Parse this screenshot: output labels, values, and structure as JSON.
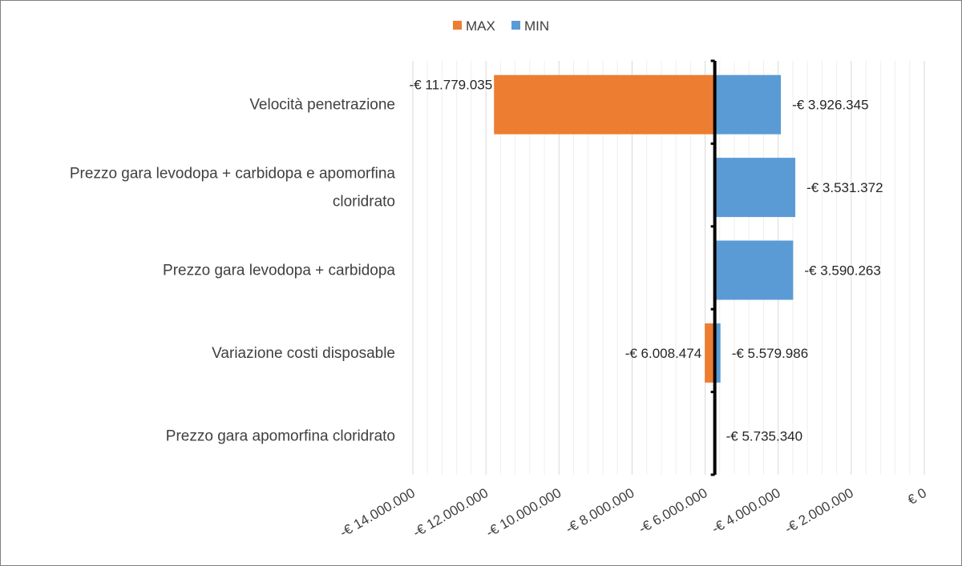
{
  "chart_data": {
    "type": "bar",
    "orientation": "horizontal",
    "subtype": "tornado",
    "baseline": -5735340,
    "xlim": [
      -14000000,
      0
    ],
    "x_ticks": [
      -14000000,
      -12000000,
      -10000000,
      -8000000,
      -6000000,
      -4000000,
      -2000000,
      0
    ],
    "x_tick_labels": [
      "-€ 14.000.000",
      "-€ 12.000.000",
      "-€ 10.000.000",
      "-€ 8.000.000",
      "-€ 6.000.000",
      "-€ 4.000.000",
      "-€ 2.000.000",
      "€ 0"
    ],
    "grid": true,
    "legend_position": "top",
    "categories": [
      [
        "Velocità penetrazione"
      ],
      [
        "Prezzo gara levodopa + carbidopa e apomorfina",
        "cloridrato"
      ],
      [
        "Prezzo gara levodopa + carbidopa"
      ],
      [
        "Variazione costi disposable"
      ],
      [
        "Prezzo gara apomorfina cloridrato"
      ]
    ],
    "series": [
      {
        "name": "MAX",
        "color": "#ED7D31",
        "values": [
          -11779035,
          null,
          null,
          -6008474,
          null
        ],
        "labels": [
          "-€ 11.779.035",
          "",
          "",
          "-€ 6.008.474",
          ""
        ]
      },
      {
        "name": "MIN",
        "color": "#5B9BD5",
        "values": [
          -3926345,
          -3531372,
          -3590263,
          -5579986,
          -5735340
        ],
        "labels": [
          "-€ 3.926.345",
          "-€ 3.531.372",
          "-€ 3.590.263",
          "-€ 5.579.986",
          "-€ 5.735.340"
        ]
      }
    ]
  }
}
